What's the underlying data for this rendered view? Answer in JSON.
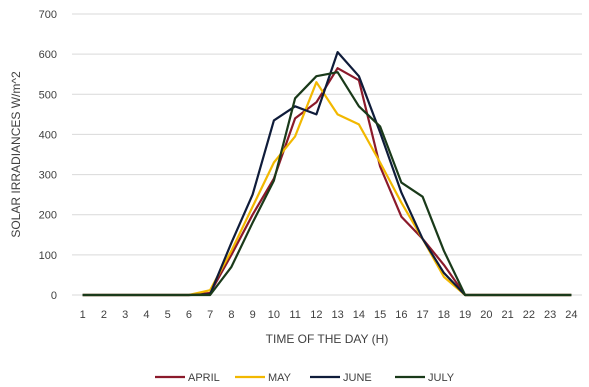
{
  "chart_data": {
    "type": "line",
    "title": "",
    "xlabel": "TIME OF THE DAY (H)",
    "ylabel": "SOLAR IRRADIANCES W/m^2",
    "categories": [
      "1",
      "2",
      "3",
      "4",
      "5",
      "6",
      "7",
      "8",
      "9",
      "10",
      "11",
      "12",
      "13",
      "14",
      "15",
      "16",
      "17",
      "18",
      "19",
      "20",
      "21",
      "22",
      "23",
      "24"
    ],
    "ylim": [
      0,
      700
    ],
    "yticks": [
      0,
      100,
      200,
      300,
      400,
      500,
      600,
      700
    ],
    "grid": "horizontal",
    "legend_position": "bottom",
    "series": [
      {
        "name": "APRIL",
        "color": "#8b1a2b",
        "values": [
          0,
          0,
          0,
          0,
          0,
          0,
          5,
          100,
          200,
          290,
          440,
          480,
          565,
          535,
          320,
          195,
          140,
          75,
          0,
          0,
          0,
          0,
          0,
          0
        ]
      },
      {
        "name": "MAY",
        "color": "#f2b800",
        "values": [
          0,
          0,
          0,
          0,
          0,
          0,
          12,
          110,
          220,
          330,
          395,
          530,
          450,
          425,
          330,
          230,
          140,
          45,
          0,
          0,
          0,
          0,
          0,
          0
        ]
      },
      {
        "name": "JUNE",
        "color": "#0f1c3a",
        "values": [
          0,
          0,
          0,
          0,
          0,
          0,
          2,
          130,
          250,
          435,
          470,
          450,
          605,
          545,
          405,
          255,
          140,
          55,
          0,
          0,
          0,
          0,
          0,
          0
        ]
      },
      {
        "name": "JULY",
        "color": "#1a3a1a",
        "values": [
          0,
          0,
          0,
          0,
          0,
          0,
          0,
          70,
          180,
          285,
          490,
          545,
          555,
          470,
          420,
          280,
          245,
          110,
          0,
          0,
          0,
          0,
          0,
          0
        ]
      }
    ]
  }
}
